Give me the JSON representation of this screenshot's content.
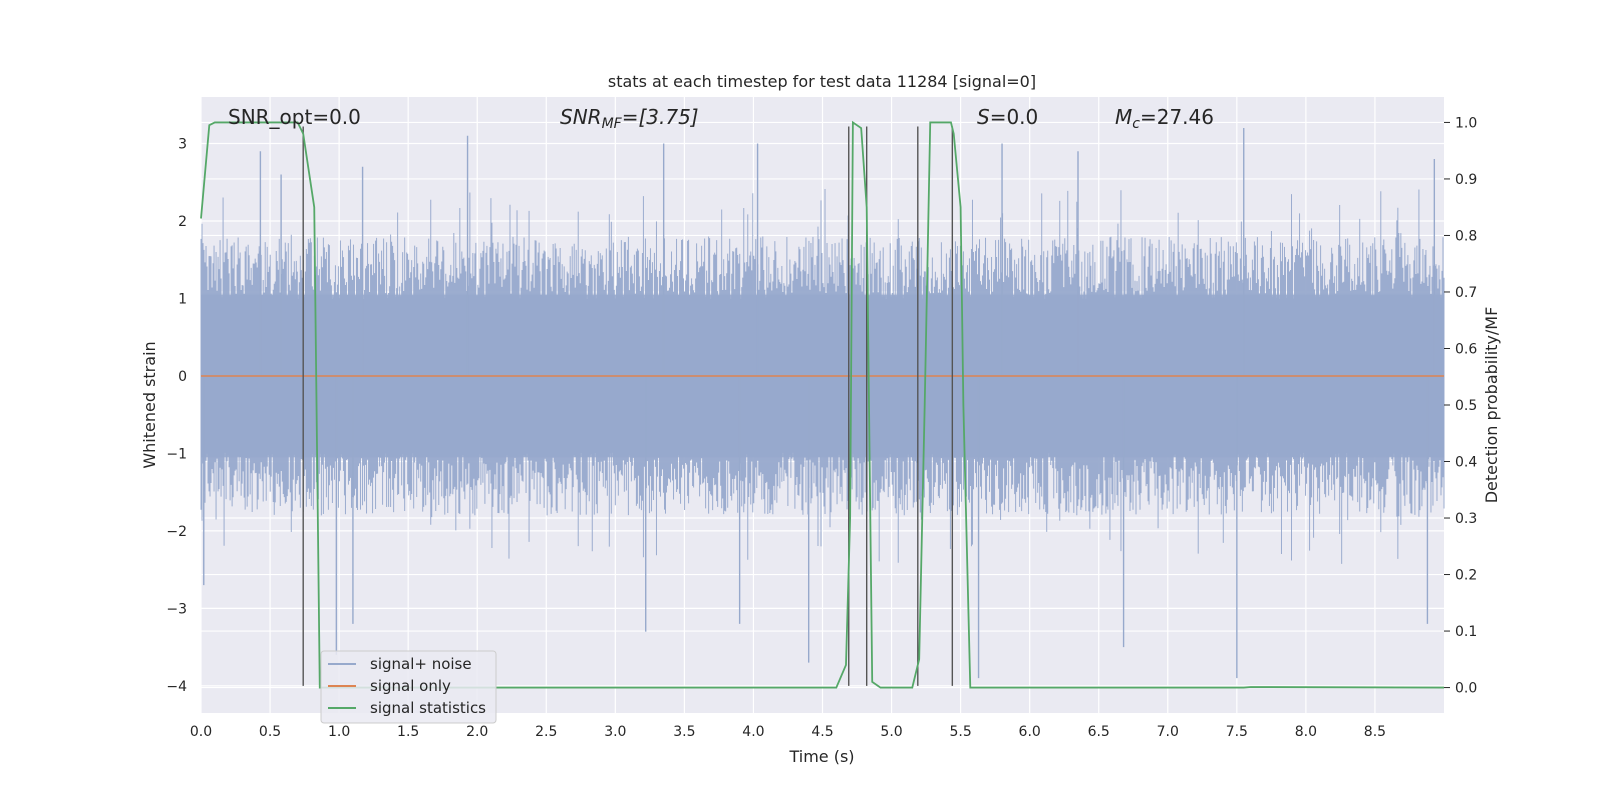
{
  "chart_data": {
    "type": "line",
    "title": "stats at each timestep for test data 11284 [signal=0]",
    "xlabel": "Time (s)",
    "ylabel_left": "Whitened strain",
    "ylabel_right": "Detection probability/MF",
    "xlim": [
      0.0,
      9.0
    ],
    "ylim_left": [
      -4.35,
      3.6
    ],
    "ylim_right": [
      -0.045,
      1.045
    ],
    "x_ticks": [
      "0.0",
      "0.5",
      "1.0",
      "1.5",
      "2.0",
      "2.5",
      "3.0",
      "3.5",
      "4.0",
      "4.5",
      "5.0",
      "5.5",
      "6.0",
      "6.5",
      "7.0",
      "7.5",
      "8.0",
      "8.5"
    ],
    "x_tick_values": [
      0.0,
      0.5,
      1.0,
      1.5,
      2.0,
      2.5,
      3.0,
      3.5,
      4.0,
      4.5,
      5.0,
      5.5,
      6.0,
      6.5,
      7.0,
      7.5,
      8.0,
      8.5
    ],
    "y_left_ticks": [
      "3",
      "2",
      "1",
      "0",
      "−1",
      "−2",
      "−3",
      "−4"
    ],
    "y_left_tick_values": [
      3,
      2,
      1,
      0,
      -1,
      -2,
      -3,
      -4
    ],
    "y_right_ticks": [
      "1.0",
      "0.9",
      "0.8",
      "0.7",
      "0.6",
      "0.5",
      "0.4",
      "0.3",
      "0.2",
      "0.1",
      "0.0"
    ],
    "y_right_tick_values": [
      1.0,
      0.9,
      0.8,
      0.7,
      0.6,
      0.5,
      0.4,
      0.3,
      0.2,
      0.1,
      0.0
    ],
    "grid": true,
    "legend_position": "lower-left",
    "annotations": {
      "snr_opt": "SNR_opt=0.0",
      "snr_mf_label": "SNR",
      "snr_mf_sub": "MF",
      "snr_mf_value": "=[3.75]",
      "s_label": "S",
      "s_value": "=0.0",
      "mc_label": "M",
      "mc_sub": "c",
      "mc_value": "=27.46"
    },
    "series": [
      {
        "name": "signal+ noise",
        "color": "#97a9cc",
        "description_values": "whitened noise, roughly within [-2, 2] with spikes to about +3.2 and -3.6",
        "envelope_typical": [
          -1.8,
          1.8
        ],
        "spikes": [
          {
            "x": 0.43,
            "y": 2.9
          },
          {
            "x": 0.58,
            "y": 2.6
          },
          {
            "x": 1.17,
            "y": 2.7
          },
          {
            "x": 1.93,
            "y": 3.1
          },
          {
            "x": 3.35,
            "y": 3.0
          },
          {
            "x": 4.03,
            "y": 3.0
          },
          {
            "x": 5.8,
            "y": 3.0
          },
          {
            "x": 6.35,
            "y": 2.9
          },
          {
            "x": 7.55,
            "y": 3.2
          },
          {
            "x": 8.93,
            "y": 2.8
          },
          {
            "x": 0.98,
            "y": -3.6
          },
          {
            "x": 1.1,
            "y": -3.2
          },
          {
            "x": 3.22,
            "y": -3.3
          },
          {
            "x": 3.9,
            "y": -3.2
          },
          {
            "x": 4.4,
            "y": -3.7
          },
          {
            "x": 5.63,
            "y": -3.9
          },
          {
            "x": 6.68,
            "y": -3.5
          },
          {
            "x": 7.5,
            "y": -3.9
          },
          {
            "x": 8.88,
            "y": -3.2
          },
          {
            "x": 0.02,
            "y": -2.7
          }
        ]
      },
      {
        "name": "signal only",
        "color": "#dd8452",
        "x": [
          0.0,
          9.0
        ],
        "y": [
          0.0,
          0.0
        ]
      },
      {
        "name": "signal statistics",
        "color": "#55a868",
        "axis": "right",
        "x": [
          0.0,
          0.06,
          0.1,
          0.7,
          0.74,
          0.82,
          0.86,
          4.6,
          4.67,
          4.7,
          4.72,
          4.78,
          4.82,
          4.86,
          4.92,
          5.15,
          5.2,
          5.24,
          5.28,
          5.43,
          5.45,
          5.5,
          5.52,
          5.57,
          7.55,
          7.6,
          9.0
        ],
        "y": [
          0.83,
          0.995,
          1.0,
          1.0,
          0.98,
          0.85,
          0.0,
          0.0,
          0.04,
          0.3,
          1.0,
          0.99,
          0.85,
          0.01,
          0.0,
          0.0,
          0.05,
          0.5,
          1.0,
          1.0,
          0.98,
          0.85,
          0.5,
          0.0,
          0.0,
          0.001,
          0.0
        ]
      }
    ],
    "vertical_markers": {
      "color": "#555555",
      "x": [
        0.74,
        4.69,
        4.82,
        5.19,
        5.44
      ],
      "y_from": -4.0,
      "y_to": 3.22
    }
  },
  "legend": {
    "items": [
      {
        "label": "signal+ noise",
        "color": "#97a9cc"
      },
      {
        "label": "signal only",
        "color": "#dd8452"
      },
      {
        "label": "signal statistics",
        "color": "#55a868"
      }
    ]
  },
  "colors": {
    "plot_background": "#eaeaf2",
    "grid": "#ffffff",
    "text": "#262626"
  }
}
